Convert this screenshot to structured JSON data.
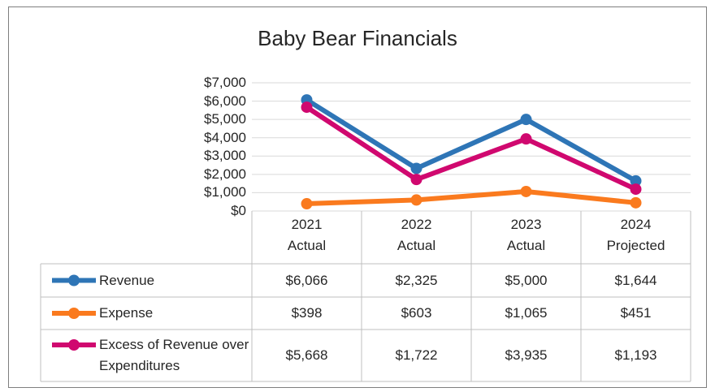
{
  "chart_data": {
    "type": "line",
    "title": "Baby Bear Financials",
    "categories": [
      "2021\nActual",
      "2022\nActual",
      "2023\nActual",
      "2024\nProjected"
    ],
    "series": [
      {
        "name": "Revenue",
        "color": "#2e75b6",
        "values": [
          6066,
          2325,
          5000,
          1644
        ],
        "value_labels": [
          "$6,066",
          "$2,325",
          "$5,000",
          "$1,644"
        ]
      },
      {
        "name": "Expense",
        "color": "#fa7a1e",
        "values": [
          398,
          603,
          1065,
          451
        ],
        "value_labels": [
          "$398",
          "$603",
          "$1,065",
          "$451"
        ]
      },
      {
        "name": "Excess of Revenue over Expenditures",
        "color": "#d0086f",
        "values": [
          5668,
          1722,
          3935,
          1193
        ],
        "value_labels": [
          "$5,668",
          "$1,722",
          "$3,935",
          "$1,193"
        ]
      }
    ],
    "ylim": [
      0,
      7000
    ],
    "yticks": [
      {
        "value": 0,
        "label": "$0"
      },
      {
        "value": 1000,
        "label": "$1,000"
      },
      {
        "value": 2000,
        "label": "$2,000"
      },
      {
        "value": 3000,
        "label": "$3,000"
      },
      {
        "value": 4000,
        "label": "$4,000"
      },
      {
        "value": 5000,
        "label": "$5,000"
      },
      {
        "value": 6000,
        "label": "$6,000"
      },
      {
        "value": 7000,
        "label": "$7,000"
      }
    ],
    "grid": true
  }
}
